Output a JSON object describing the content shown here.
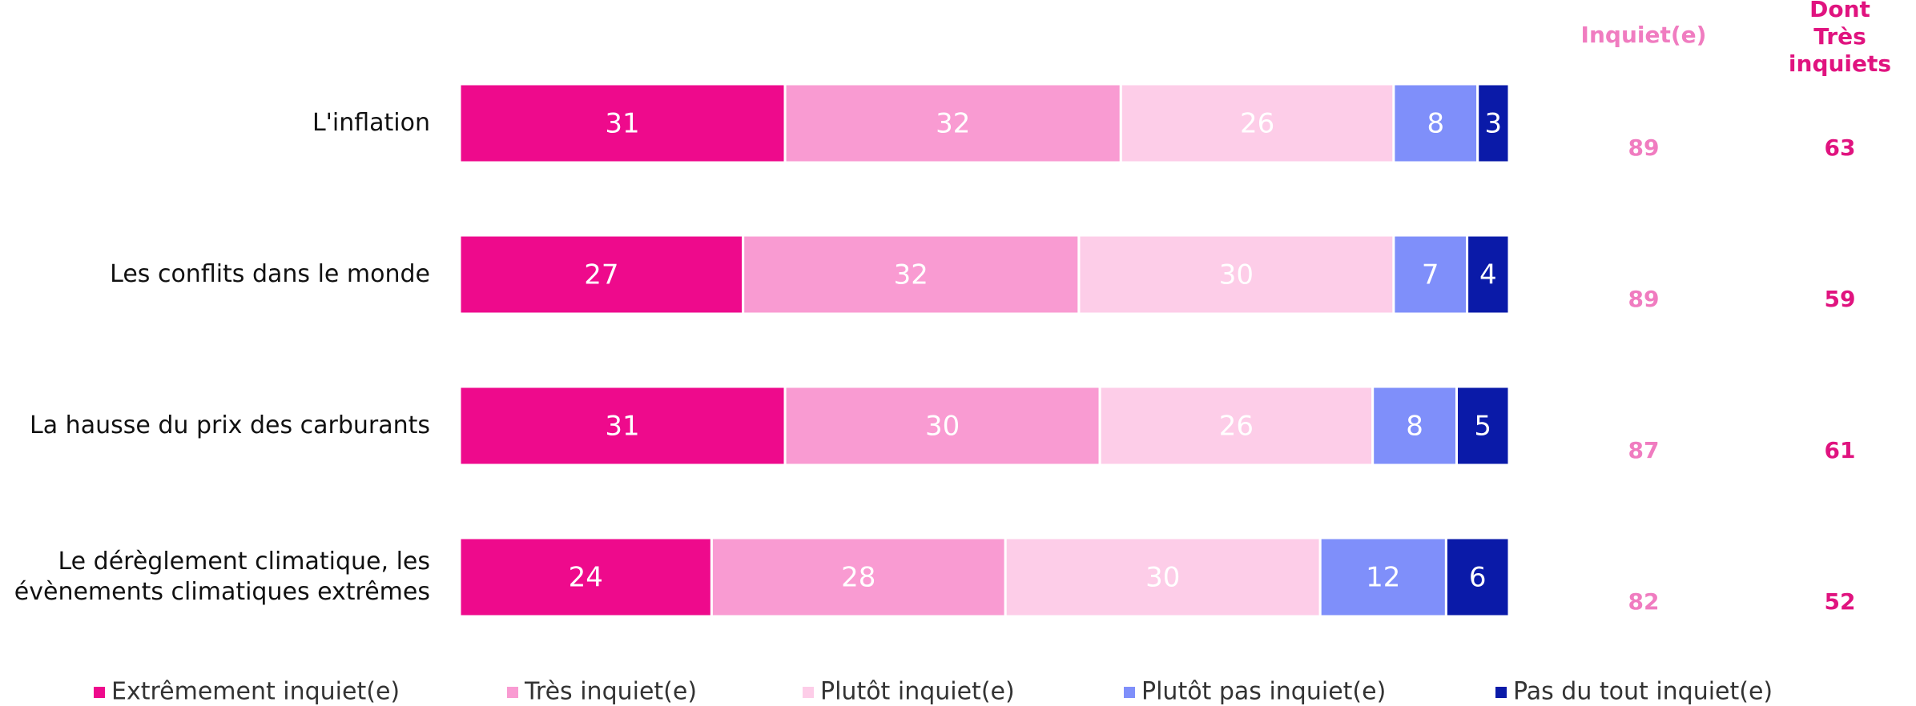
{
  "chart_data": {
    "type": "bar",
    "orientation": "horizontal",
    "stacked": true,
    "categories": [
      "L'inflation",
      "Les conflits dans le monde",
      "La hausse du prix des carburants",
      "Le dérèglement climatique, les évènements climatiques extrêmes"
    ],
    "series": [
      {
        "name": "Extrêmement inquiet(e)",
        "color": "#ee0a8c",
        "values": [
          31,
          27,
          31,
          24
        ]
      },
      {
        "name": "Très inquiet(e)",
        "color": "#f99bd2",
        "values": [
          32,
          32,
          30,
          28
        ]
      },
      {
        "name": "Plutôt inquiet(e)",
        "color": "#fdcde8",
        "values": [
          26,
          30,
          26,
          30
        ]
      },
      {
        "name": "Plutôt pas inquiet(e)",
        "color": "#7f8ffa",
        "values": [
          8,
          7,
          8,
          12
        ]
      },
      {
        "name": "Pas du tout inquiet(e)",
        "color": "#0a1aa8",
        "values": [
          3,
          4,
          5,
          6
        ]
      }
    ],
    "columns": [
      {
        "name": "Inquiet(e)",
        "color": "#f07cc0",
        "values": [
          89,
          89,
          87,
          82
        ]
      },
      {
        "name": "Dont Très inquiets",
        "color": "#e0137f",
        "values": [
          63,
          59,
          61,
          52
        ]
      }
    ],
    "legend": "bottom"
  }
}
